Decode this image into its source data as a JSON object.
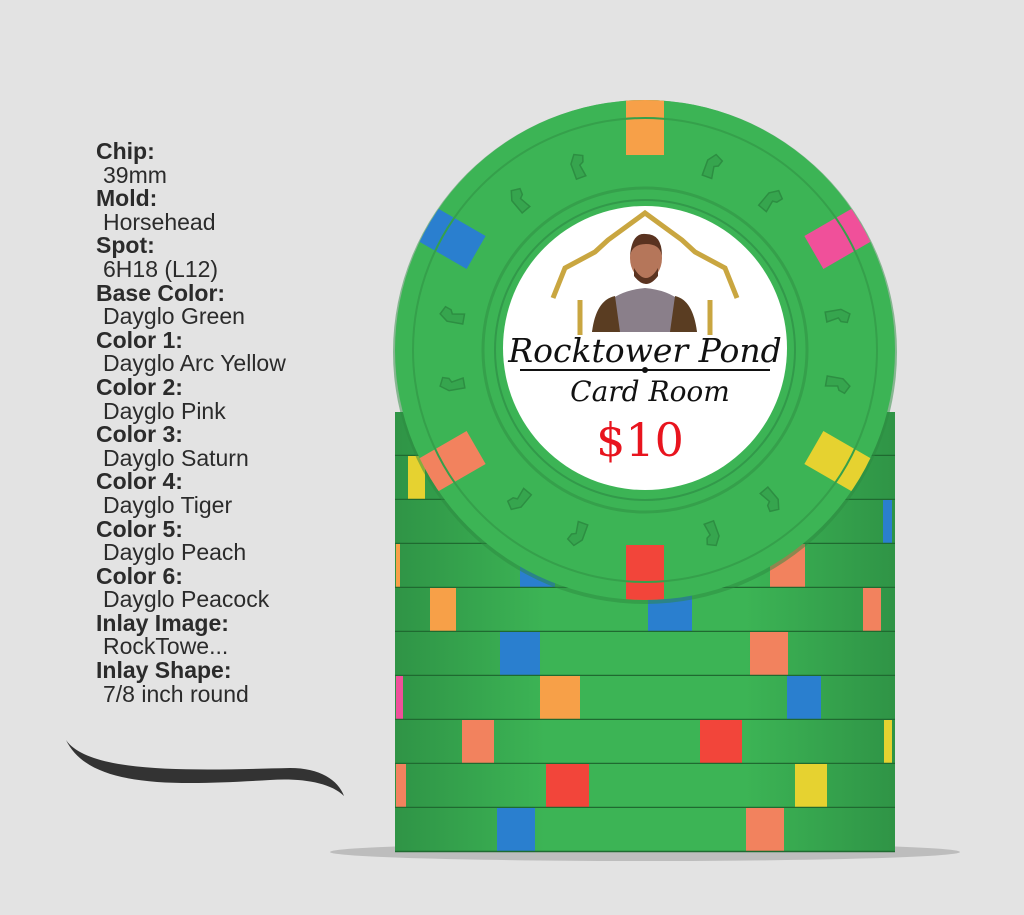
{
  "specs": [
    {
      "label": "Chip:",
      "value": "39mm"
    },
    {
      "label": "Mold:",
      "value": "Horsehead"
    },
    {
      "label": "Spot:",
      "value": "6H18 (L12)"
    },
    {
      "label": "Base Color:",
      "value": "Dayglo Green"
    },
    {
      "label": "Color 1:",
      "value": "Dayglo Arc Yellow"
    },
    {
      "label": "Color 2:",
      "value": "Dayglo Pink"
    },
    {
      "label": "Color 3:",
      "value": "Dayglo Saturn"
    },
    {
      "label": "Color 4:",
      "value": "Dayglo Tiger"
    },
    {
      "label": "Color 5:",
      "value": "Dayglo Peach"
    },
    {
      "label": "Color 6:",
      "value": "Dayglo Peacock"
    },
    {
      "label": "Inlay Image:",
      "value": "RockTowe..."
    },
    {
      "label": "Inlay Shape:",
      "value": "7/8 inch round"
    }
  ],
  "chip": {
    "inlay_line1": "Rocktower Pond",
    "inlay_line2": "Card Room",
    "denomination": "$10",
    "colors": {
      "base": "#3cb455",
      "yellow": "#e6d230",
      "pink": "#f0509a",
      "saturn": "#2a7fcf",
      "tiger": "#f2453a",
      "peach": "#f2825e",
      "orange": "#f7a048",
      "denomination": "#e8141e"
    }
  }
}
